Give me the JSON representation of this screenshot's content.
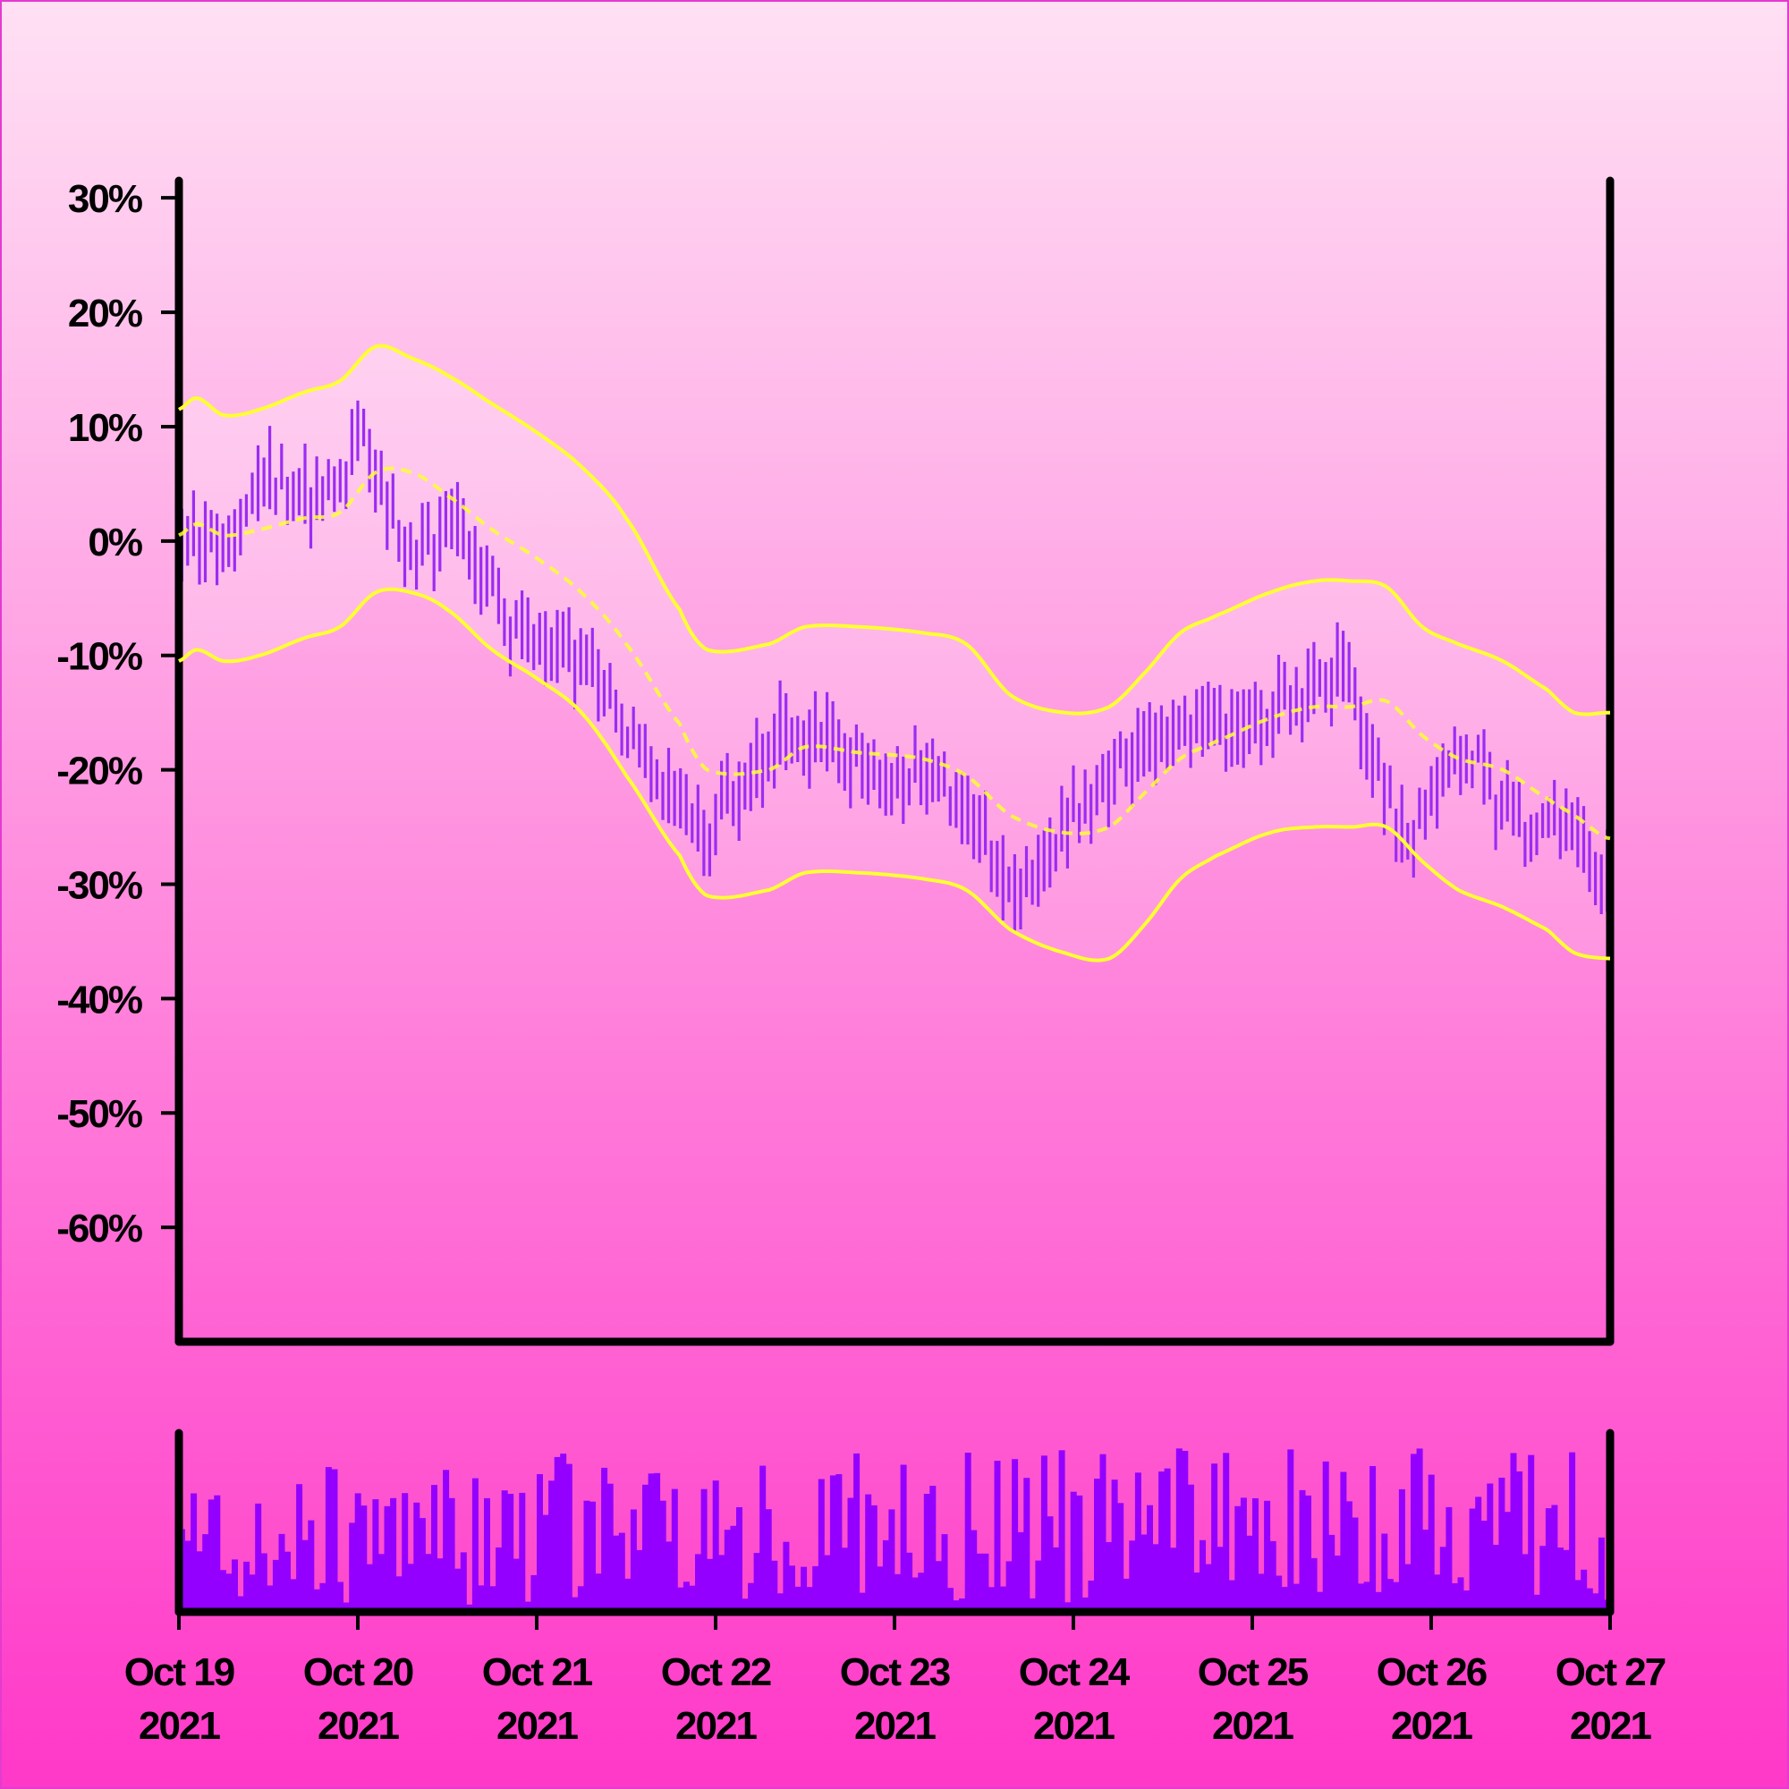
{
  "colors": {
    "background_top": "#ffe0f4",
    "background_bottom": "#ff38c8",
    "price_bars": "#9b2cf2",
    "volume_bars": "#9400ff",
    "bands": "#ffff33",
    "axes": "#000000"
  },
  "chart_data": {
    "type": "ohlc",
    "title": "",
    "xlabel": "",
    "ylabel": "",
    "ylim": [
      -70,
      31.5
    ],
    "y_ticks": [
      "30%",
      "20%",
      "10%",
      "0%",
      "-10%",
      "-20%",
      "-30%",
      "-40%",
      "-50%",
      "-60%"
    ],
    "y_tick_values": [
      30,
      20,
      10,
      0,
      -10,
      -20,
      -30,
      -40,
      -50,
      -60
    ],
    "x_ticks": [
      {
        "line1": "Oct 19",
        "line2": "2021"
      },
      {
        "line1": "Oct 20",
        "line2": "2021"
      },
      {
        "line1": "Oct 21",
        "line2": "2021"
      },
      {
        "line1": "Oct 22",
        "line2": "2021"
      },
      {
        "line1": "Oct 23",
        "line2": "2021"
      },
      {
        "line1": "Oct 24",
        "line2": "2021"
      },
      {
        "line1": "Oct 25",
        "line2": "2021"
      },
      {
        "line1": "Oct 26",
        "line2": "2021"
      },
      {
        "line1": "Oct 27",
        "line2": "2021"
      }
    ],
    "x_range_days": [
      0,
      8
    ],
    "bands_anchor_days": [
      0,
      0.1,
      0.25,
      0.45,
      0.7,
      0.9,
      1.1,
      1.3,
      1.5,
      1.75,
      2.0,
      2.25,
      2.5,
      2.8,
      2.95,
      3.3,
      3.5,
      3.8,
      4.15,
      4.4,
      4.65,
      4.95,
      5.2,
      5.4,
      5.6,
      5.8,
      6.1,
      6.35,
      6.55,
      6.75,
      6.95,
      7.15,
      7.4,
      7.65,
      7.8,
      7.99
    ],
    "bands_middle_pct": [
      0.5,
      1.5,
      0.5,
      1,
      2,
      2.5,
      6,
      6,
      4,
      1,
      -1.5,
      -4.5,
      -9,
      -16,
      -20,
      -20,
      -18,
      -18.5,
      -19,
      -20.5,
      -24,
      -25.5,
      -25,
      -22,
      -19,
      -17.5,
      -15.5,
      -14.5,
      -14.5,
      -14,
      -17,
      -19,
      -20,
      -22.5,
      -24,
      -26
    ],
    "bands_upper_pct": [
      11.5,
      12.5,
      11,
      11.5,
      13,
      14,
      17,
      16,
      14.5,
      12,
      9.5,
      6.5,
      2,
      -6,
      -9.5,
      -9,
      -7.5,
      -7.5,
      -8,
      -9,
      -13.5,
      -15,
      -14.5,
      -11.5,
      -8,
      -6.5,
      -4.5,
      -3.5,
      -3.5,
      -4,
      -7.5,
      -9,
      -10.5,
      -13,
      -15,
      -15
    ],
    "bands_lower_pct": [
      -10.5,
      -9.5,
      -10.5,
      -10,
      -8.5,
      -7.5,
      -4.5,
      -4.5,
      -6,
      -9.5,
      -12,
      -15,
      -20.5,
      -27.5,
      -31,
      -30.5,
      -29,
      -29,
      -29.5,
      -30.5,
      -34,
      -36,
      -36.5,
      -33.5,
      -29.5,
      -27.5,
      -25.5,
      -25,
      -25,
      -25,
      -28,
      -30.5,
      -32,
      -34,
      -36,
      -36.5
    ],
    "price_anchor_days": [
      0,
      0.25,
      0.5,
      0.9,
      1.0,
      1.1,
      1.3,
      1.5,
      1.7,
      1.9,
      2.15,
      2.5,
      2.75,
      2.95,
      3.3,
      3.6,
      3.9,
      4.2,
      4.4,
      4.65,
      4.95,
      5.25,
      5.55,
      5.8,
      6.1,
      6.35,
      6.5,
      6.7,
      6.9,
      7.15,
      7.35,
      7.55,
      7.75,
      7.95
    ],
    "price_anchor_pct": [
      1,
      -1,
      5,
      4.5,
      10,
      6,
      -1.5,
      1.5,
      -3,
      -8,
      -9,
      -16,
      -22,
      -25,
      -18,
      -18,
      -20,
      -21,
      -23,
      -30,
      -25,
      -20,
      -17,
      -15.5,
      -15,
      -13.5,
      -12,
      -20,
      -25,
      -18,
      -22,
      -26,
      -25,
      -29
    ],
    "volume_ylim": [
      0,
      13.5
    ]
  }
}
